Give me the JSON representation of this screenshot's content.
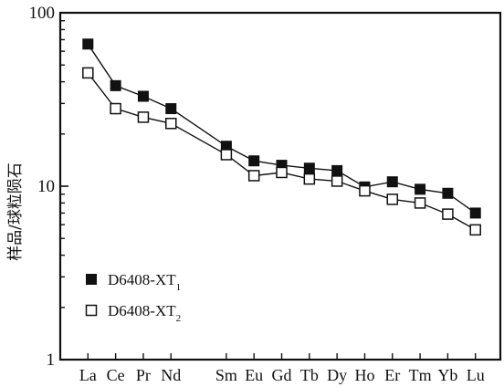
{
  "chart_data": {
    "type": "line",
    "xlabel": "",
    "ylabel": "样品/球粒陨石",
    "yscale": "log",
    "ylim": [
      1,
      100
    ],
    "yticks": [
      "1",
      "10",
      "100"
    ],
    "categories": [
      "La",
      "Ce",
      "Pr",
      "Nd",
      "Sm",
      "Eu",
      "Gd",
      "Tb",
      "Dy",
      "Ho",
      "Er",
      "Tm",
      "Yb",
      "Lu"
    ],
    "category_positions": [
      1,
      2,
      3,
      4,
      6,
      7,
      8,
      9,
      10,
      11,
      12,
      13,
      14,
      15
    ],
    "series": [
      {
        "name": "D6408-XT",
        "name_subscript": "1",
        "marker": "filled-square",
        "values": [
          66,
          38,
          33,
          28,
          17,
          14,
          13.2,
          12.7,
          12.3,
          9.9,
          10.6,
          9.6,
          9.1,
          7
        ]
      },
      {
        "name": "D6408-XT",
        "name_subscript": "2",
        "marker": "open-square",
        "values": [
          45,
          28,
          25,
          23,
          15.2,
          11.5,
          12,
          11,
          10.7,
          9.4,
          8.4,
          8,
          6.9,
          5.6
        ]
      }
    ],
    "legend_position": "bottom-left",
    "grid": false
  }
}
